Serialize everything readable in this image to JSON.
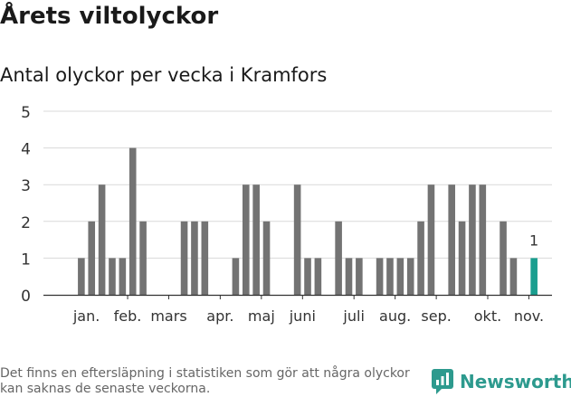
{
  "header": {
    "title": "Årets viltolyckor"
  },
  "chart_data": {
    "type": "bar",
    "title": "Antal olyckor per vecka i Kramfors",
    "xlabel": "",
    "ylabel": "",
    "ylim": [
      0,
      5
    ],
    "yticks": [
      0,
      1,
      2,
      3,
      4,
      5
    ],
    "grid": true,
    "weeks": [
      1,
      2,
      3,
      4,
      5,
      6,
      7,
      8,
      9,
      10,
      11,
      12,
      13,
      14,
      15,
      16,
      17,
      18,
      19,
      20,
      21,
      22,
      23,
      24,
      25,
      26,
      27,
      28,
      29,
      30,
      31,
      32,
      33,
      34,
      35,
      36,
      37,
      38,
      39,
      40,
      41,
      42,
      43,
      44,
      45,
      46
    ],
    "values": [
      0,
      1,
      2,
      3,
      1,
      1,
      4,
      2,
      0,
      0,
      0,
      2,
      2,
      2,
      0,
      0,
      1,
      3,
      3,
      2,
      0,
      0,
      3,
      1,
      1,
      0,
      2,
      1,
      1,
      0,
      1,
      1,
      1,
      1,
      2,
      3,
      0,
      3,
      2,
      3,
      3,
      0,
      2,
      1,
      0,
      1
    ],
    "month_labels": [
      {
        "label": "jan.",
        "week": 2.5
      },
      {
        "label": "feb.",
        "week": 6.5
      },
      {
        "label": "mars",
        "week": 10.5
      },
      {
        "label": "apr.",
        "week": 15.5
      },
      {
        "label": "maj",
        "week": 19.5
      },
      {
        "label": "juni",
        "week": 23.5
      },
      {
        "label": "juli",
        "week": 28.5
      },
      {
        "label": "aug.",
        "week": 32.5
      },
      {
        "label": "sep.",
        "week": 36.5
      },
      {
        "label": "okt.",
        "week": 41.5
      },
      {
        "label": "nov.",
        "week": 45.5
      }
    ],
    "month_ticks": [
      6,
      10,
      15,
      19,
      23,
      28,
      32,
      36,
      41,
      45
    ],
    "highlight": {
      "week": 46,
      "value": 1,
      "label": "1"
    },
    "colors": {
      "bar": "#737373",
      "highlight": "#1a9e8f",
      "grid": "#d9d9d9",
      "axis": "#333333"
    }
  },
  "footer": {
    "note": "Det finns en eftersläpning i statistiken som gör att några olyckor kan saknas de senaste veckorna.",
    "brand": "Newsworthy",
    "brand_icon": "newsworthy-logo-icon",
    "brand_color": "#2d9a8e"
  }
}
